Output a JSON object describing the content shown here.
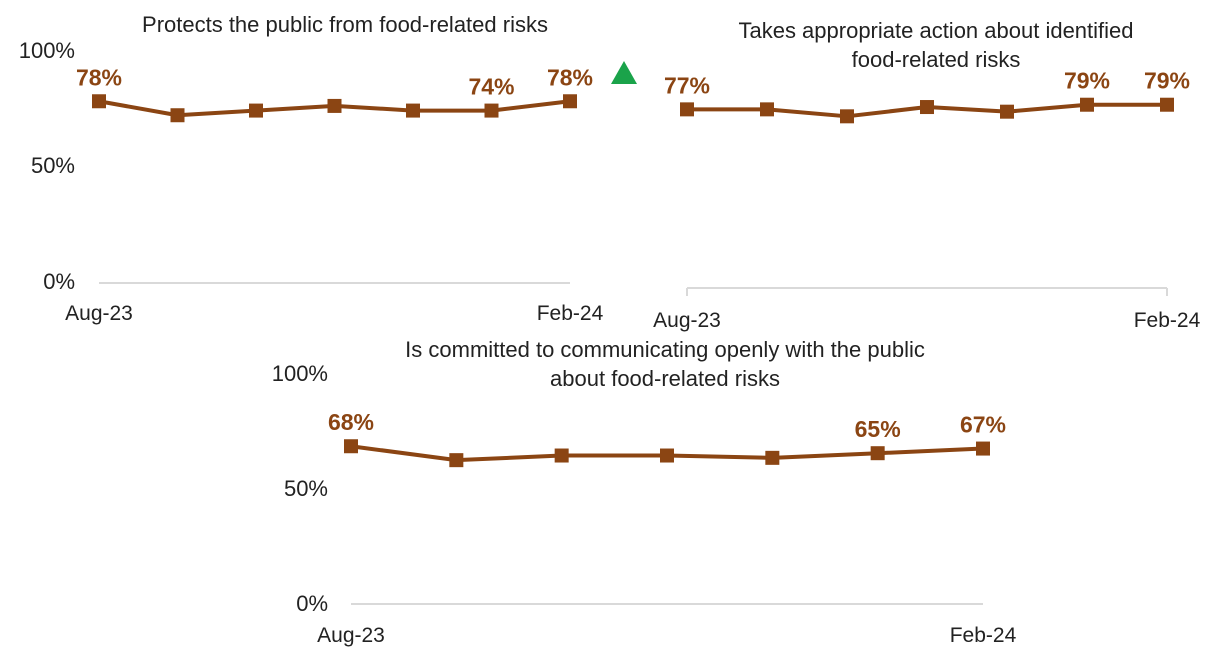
{
  "colors": {
    "series": "#8b4513",
    "indicator": "#1aa34a",
    "axis": "#d9d9d9"
  },
  "chart_data": [
    {
      "type": "line",
      "title": "Protects the public from food-related risks",
      "x_start_label": "Aug-23",
      "x_end_label": "Feb-24",
      "ylim": [
        0,
        100
      ],
      "yticks": [
        "100%",
        "50%",
        "0%"
      ],
      "values": [
        78,
        72,
        74,
        76,
        74,
        74,
        78
      ],
      "labels": [
        "78%",
        null,
        null,
        null,
        null,
        "74%",
        "78%"
      ],
      "indicator": "up-triangle-icon"
    },
    {
      "type": "line",
      "title": "Takes appropriate action about identified food-related risks",
      "title_lines": [
        "Takes appropriate action about identified",
        "food-related risks"
      ],
      "x_start_label": "Aug-23",
      "x_end_label": "Feb-24",
      "ylim": [
        0,
        100
      ],
      "values": [
        77,
        77,
        74,
        78,
        76,
        79,
        79
      ],
      "labels": [
        "77%",
        null,
        null,
        null,
        null,
        "79%",
        "79%"
      ]
    },
    {
      "type": "line",
      "title": "Is committed to communicating openly with the public about food-related risks",
      "title_lines": [
        "Is committed to communicating openly with the public",
        "about food-related risks"
      ],
      "x_start_label": "Aug-23",
      "x_end_label": "Feb-24",
      "ylim": [
        0,
        100
      ],
      "yticks": [
        "100%",
        "50%",
        "0%"
      ],
      "values": [
        68,
        62,
        64,
        64,
        63,
        65,
        67
      ],
      "labels": [
        "68%",
        null,
        null,
        null,
        null,
        "65%",
        "67%"
      ]
    }
  ]
}
